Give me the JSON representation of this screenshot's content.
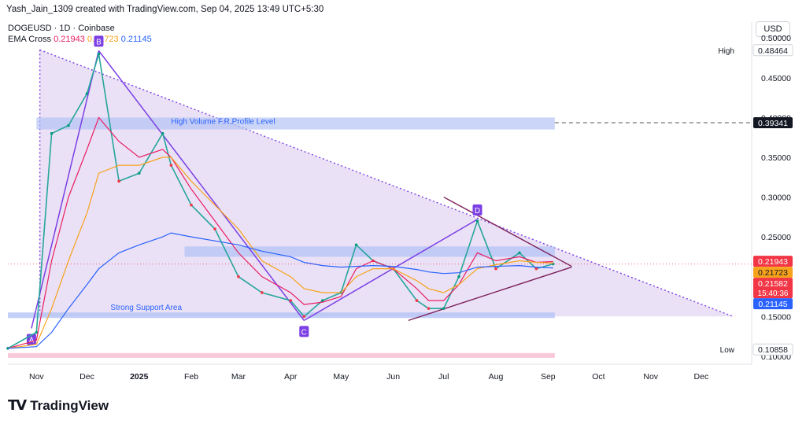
{
  "caption": "Yash_Jain_1309 created with TradingView.com, Sep 04, 2025 13:49 UTC+5:30",
  "legend": {
    "symbol": "DOGEUSD · 1D · Coinbase",
    "ema_label": "EMA Cross",
    "ema_values": [
      "0.21943",
      "0.21723",
      "0.21145"
    ]
  },
  "currency": "USD",
  "brand": "TradingView",
  "colors": {
    "ema_fast": "#e91e63",
    "ema_mid": "#f7a21b",
    "ema_slow": "#2962ff",
    "up": "#089981",
    "down": "#f23645",
    "triangle_fill": "#d9c9ee",
    "zone": "#b3c3f5",
    "pattern": "#7b3fe4",
    "trendline": "#7b1f5a"
  },
  "chart_data": {
    "type": "line",
    "title": "",
    "xlabel": "",
    "ylabel": "",
    "ylim": [
      0.09,
      0.52
    ],
    "x_ticks": [
      "Nov",
      "Dec",
      "2025",
      "Feb",
      "Mar",
      "Apr",
      "May",
      "Jun",
      "Jul",
      "Aug",
      "Sep",
      "Oct",
      "Nov",
      "Dec"
    ],
    "y_ticks": [
      "0.50000",
      "0.45000",
      "0.40000",
      "0.35000",
      "0.30000",
      "0.25000",
      "0.20000",
      "0.15000",
      "0.10000"
    ],
    "x": [
      "2024-10-15",
      "2024-11-01",
      "2024-11-10",
      "2024-11-20",
      "2024-12-01",
      "2024-12-08",
      "2024-12-20",
      "2025-01-01",
      "2025-01-15",
      "2025-01-20",
      "2025-02-01",
      "2025-02-15",
      "2025-03-01",
      "2025-03-15",
      "2025-04-01",
      "2025-04-09",
      "2025-04-20",
      "2025-05-01",
      "2025-05-10",
      "2025-05-20",
      "2025-06-01",
      "2025-06-15",
      "2025-06-22",
      "2025-07-01",
      "2025-07-10",
      "2025-07-21",
      "2025-08-01",
      "2025-08-15",
      "2025-08-25",
      "2025-09-04"
    ],
    "series": [
      {
        "values": [
          0.11,
          0.13,
          0.38,
          0.39,
          0.43,
          0.48,
          0.32,
          0.33,
          0.38,
          0.34,
          0.29,
          0.26,
          0.2,
          0.18,
          0.17,
          0.15,
          0.17,
          0.18,
          0.24,
          0.22,
          0.21,
          0.17,
          0.16,
          0.16,
          0.2,
          0.27,
          0.21,
          0.23,
          0.21,
          0.216
        ]
      },
      {
        "values": [
          0.11,
          0.12,
          0.22,
          0.3,
          0.36,
          0.4,
          0.37,
          0.35,
          0.36,
          0.35,
          0.31,
          0.27,
          0.23,
          0.2,
          0.18,
          0.165,
          0.168,
          0.175,
          0.21,
          0.22,
          0.21,
          0.185,
          0.17,
          0.17,
          0.19,
          0.23,
          0.22,
          0.225,
          0.218,
          0.219
        ]
      },
      {
        "values": [
          0.11,
          0.115,
          0.16,
          0.22,
          0.28,
          0.33,
          0.34,
          0.34,
          0.35,
          0.35,
          0.32,
          0.29,
          0.26,
          0.22,
          0.2,
          0.185,
          0.18,
          0.18,
          0.2,
          0.21,
          0.21,
          0.195,
          0.185,
          0.18,
          0.19,
          0.21,
          0.215,
          0.22,
          0.218,
          0.217
        ]
      },
      {
        "values": [
          0.11,
          0.112,
          0.13,
          0.16,
          0.19,
          0.21,
          0.23,
          0.24,
          0.25,
          0.255,
          0.25,
          0.245,
          0.24,
          0.232,
          0.225,
          0.218,
          0.214,
          0.212,
          0.213,
          0.214,
          0.213,
          0.209,
          0.206,
          0.204,
          0.205,
          0.212,
          0.213,
          0.214,
          0.212,
          0.211
        ]
      }
    ],
    "price_labels": [
      {
        "text": "0.48464",
        "tag": "High",
        "value": 0.48464
      },
      {
        "text": "0.39341",
        "value": 0.39341
      },
      {
        "text": "0.21943",
        "value": 0.21943
      },
      {
        "text": "0.21723",
        "value": 0.21723
      },
      {
        "text": "0.21582",
        "sub": "15:40:36",
        "value": 0.21582
      },
      {
        "text": "0.21145",
        "value": 0.21145
      },
      {
        "text": "0.10858",
        "tag": "Low",
        "value": 0.10858
      }
    ],
    "annotations": {
      "high_volume": "High Volume F.R.Profile Level",
      "support": "Strong Support Area",
      "points": [
        "A",
        "B",
        "C",
        "D"
      ]
    },
    "grid": false,
    "legend": "top-left"
  }
}
